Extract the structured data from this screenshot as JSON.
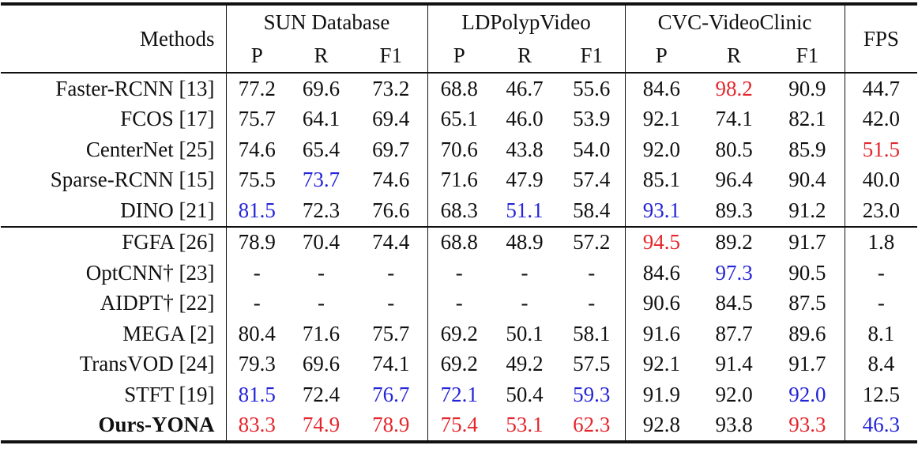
{
  "table": {
    "methods_header": "Methods",
    "group_headers": [
      "SUN Database",
      "LDPolypVideo",
      "CVC-VideoClinic"
    ],
    "fps_header": "FPS",
    "sub_headers": [
      "P",
      "R",
      "F1",
      "P",
      "R",
      "F1",
      "P",
      "R",
      "F1"
    ],
    "sections": [
      {
        "rows": [
          {
            "method": "Faster-RCNN [13]",
            "cells": [
              "77.2",
              "69.6",
              "73.2",
              "68.8",
              "46.7",
              "55.6",
              "84.6",
              {
                "text": "98.2",
                "color": "#e4262c"
              },
              "90.9",
              "44.7"
            ]
          },
          {
            "method": "FCOS [17]",
            "cells": [
              "75.7",
              "64.1",
              "69.4",
              "65.1",
              "46.0",
              "53.9",
              "92.1",
              "74.1",
              "82.1",
              "42.0"
            ]
          },
          {
            "method": "CenterNet [25]",
            "cells": [
              "74.6",
              "65.4",
              "69.7",
              "70.6",
              "43.8",
              "54.0",
              "92.0",
              "80.5",
              "85.9",
              {
                "text": "51.5",
                "color": "#e4262c"
              }
            ]
          },
          {
            "method": "Sparse-RCNN [15]",
            "cells": [
              "75.5",
              {
                "text": "73.7",
                "color": "#2424d8"
              },
              "74.6",
              "71.6",
              "47.9",
              "57.4",
              "85.1",
              "96.4",
              "90.4",
              "40.0"
            ]
          },
          {
            "method": "DINO [21]",
            "cells": [
              {
                "text": "81.5",
                "color": "#2424d8"
              },
              "72.3",
              "76.6",
              "68.3",
              {
                "text": "51.1",
                "color": "#2424d8"
              },
              "58.4",
              {
                "text": "93.1",
                "color": "#2424d8"
              },
              "89.3",
              "91.2",
              "23.0"
            ]
          }
        ]
      },
      {
        "rows": [
          {
            "method": "FGFA [26]",
            "cells": [
              "78.9",
              "70.4",
              "74.4",
              "68.8",
              "48.9",
              "57.2",
              {
                "text": "94.5",
                "color": "#e4262c"
              },
              "89.2",
              "91.7",
              "1.8"
            ]
          },
          {
            "method": "OptCNN† [23]",
            "cells": [
              "-",
              "-",
              "-",
              "-",
              "-",
              "-",
              "84.6",
              {
                "text": "97.3",
                "color": "#2424d8"
              },
              "90.5",
              "-"
            ]
          },
          {
            "method": "AIDPT† [22]",
            "cells": [
              "-",
              "-",
              "-",
              "-",
              "-",
              "-",
              "90.6",
              "84.5",
              "87.5",
              "-"
            ]
          },
          {
            "method": "MEGA [2]",
            "cells": [
              "80.4",
              "71.6",
              "75.7",
              "69.2",
              "50.1",
              "58.1",
              "91.6",
              "87.7",
              "89.6",
              "8.1"
            ]
          },
          {
            "method": "TransVOD [24]",
            "cells": [
              "79.3",
              "69.6",
              "74.1",
              "69.2",
              "49.2",
              "57.5",
              "92.1",
              "91.4",
              "91.7",
              "8.4"
            ]
          },
          {
            "method": "STFT [19]",
            "cells": [
              {
                "text": "81.5",
                "color": "#2424d8"
              },
              "72.4",
              {
                "text": "76.7",
                "color": "#2424d8"
              },
              {
                "text": "72.1",
                "color": "#2424d8"
              },
              "50.4",
              {
                "text": "59.3",
                "color": "#2424d8"
              },
              "91.9",
              "92.0",
              {
                "text": "92.0",
                "color": "#2424d8"
              },
              "12.5"
            ]
          },
          {
            "method": "Ours-YONA",
            "bold": true,
            "cells": [
              {
                "text": "83.3",
                "color": "#e4262c"
              },
              {
                "text": "74.9",
                "color": "#e4262c"
              },
              {
                "text": "78.9",
                "color": "#e4262c"
              },
              {
                "text": "75.4",
                "color": "#e4262c"
              },
              {
                "text": "53.1",
                "color": "#e4262c"
              },
              {
                "text": "62.3",
                "color": "#e4262c"
              },
              "92.8",
              "93.8",
              {
                "text": "93.3",
                "color": "#e4262c"
              },
              {
                "text": "46.3",
                "color": "#2424d8"
              }
            ]
          }
        ]
      }
    ]
  }
}
